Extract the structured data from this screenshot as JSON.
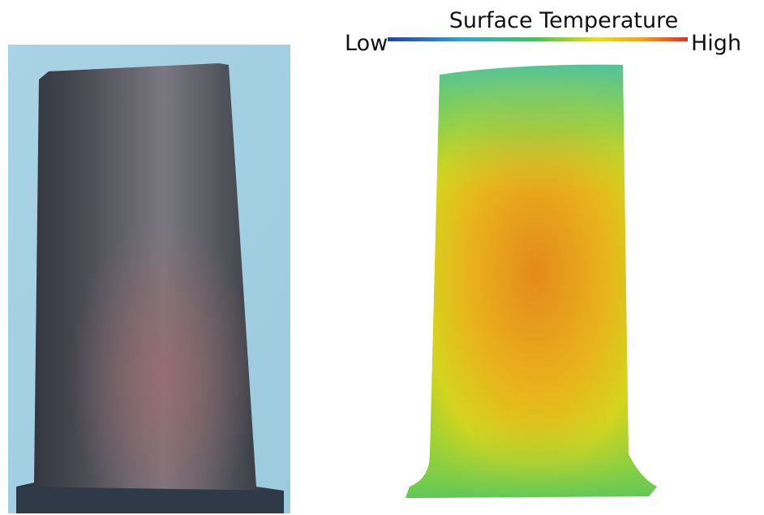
{
  "legend": {
    "title": "Surface Temperature",
    "low": "Low",
    "high": "High"
  }
}
